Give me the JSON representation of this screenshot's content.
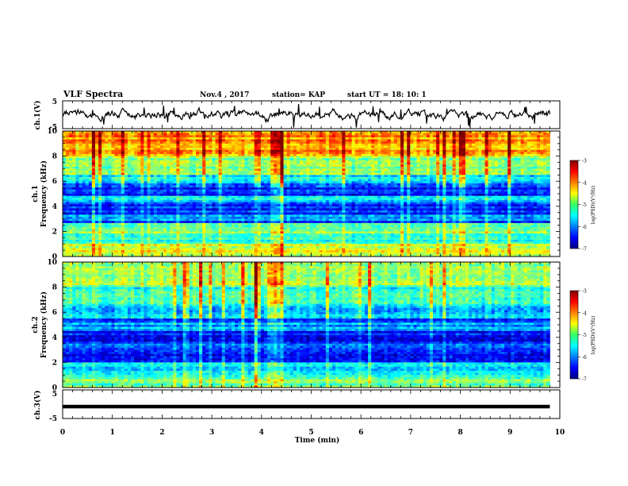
{
  "header": {
    "title": "VLF Spectra",
    "date": "Nov.4  , 2017",
    "station": "station= KAP",
    "start": "start  UT =   18: 10: 1"
  },
  "chart_data": [
    {
      "type": "line",
      "panel": "ch1-waveform",
      "ylabel": "ch.1(V)",
      "yticks": [
        "5",
        "-5"
      ],
      "ylim": [
        -5,
        5
      ],
      "xlim": [
        0,
        10
      ],
      "line_color": "#000000"
    },
    {
      "type": "heatmap",
      "panel": "ch1-spectrogram",
      "ylabel_lines": [
        "ch.1",
        "Frequency  (kHz)"
      ],
      "ylim": [
        0,
        10
      ],
      "yticks": [
        0,
        2,
        4,
        6,
        8,
        10
      ],
      "xlim": [
        0,
        9.8
      ],
      "colorbar": {
        "label": "log(PSD)(V²/Hz)",
        "ticks": [
          "-3",
          "-4",
          "-5",
          "-6",
          "-7"
        ],
        "range": [
          -7,
          -3
        ]
      }
    },
    {
      "type": "heatmap",
      "panel": "ch2-spectrogram",
      "ylabel_lines": [
        "ch.2",
        "Frequency  (kHz)"
      ],
      "ylim": [
        0,
        10
      ],
      "yticks": [
        0,
        2,
        4,
        6,
        8,
        10
      ],
      "xlim": [
        0,
        9.8
      ],
      "colorbar": {
        "label": "log(PSD)(V²/Hz)",
        "ticks": [
          "-3",
          "-4",
          "-5",
          "-6",
          "-7"
        ],
        "range": [
          -7,
          -3
        ]
      }
    },
    {
      "type": "line",
      "panel": "ch3-waveform",
      "ylabel": "ch.3(V)",
      "yticks": [
        "5",
        "-5"
      ],
      "ylim": [
        -5,
        5
      ],
      "xlim": [
        0,
        10
      ],
      "y": [
        0,
        0
      ],
      "x": [
        0,
        9.8
      ],
      "line_color": "#000000"
    }
  ],
  "xaxis": {
    "label": "Time  (min)",
    "ticks": [
      "0",
      "1",
      "2",
      "3",
      "4",
      "5",
      "6",
      "7",
      "8",
      "9",
      "10"
    ],
    "range": [
      0,
      10
    ]
  }
}
